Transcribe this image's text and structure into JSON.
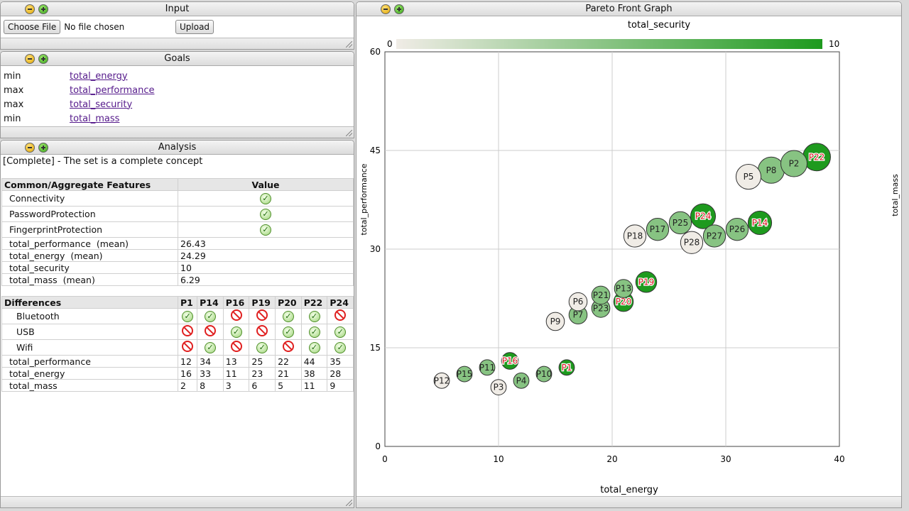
{
  "input": {
    "title": "Input",
    "choose_label": "Choose File",
    "file_status": "No file chosen",
    "upload_label": "Upload"
  },
  "goals": {
    "title": "Goals",
    "items": [
      {
        "dir": "min",
        "name": "total_energy"
      },
      {
        "dir": "max",
        "name": "total_performance"
      },
      {
        "dir": "max",
        "name": "total_security"
      },
      {
        "dir": "min",
        "name": "total_mass"
      }
    ]
  },
  "analysis": {
    "title": "Analysis",
    "status": "[Complete] - The set is a complete concept",
    "common_header": "Common/Aggregate Features",
    "value_header": "Value",
    "common_features": [
      {
        "name": "Connectivity",
        "value": "check"
      },
      {
        "name": "PasswordProtection",
        "value": "check"
      },
      {
        "name": "FingerprintProtection",
        "value": "check"
      }
    ],
    "aggregates": [
      {
        "name": "total_performance  (mean)",
        "value": "26.43"
      },
      {
        "name": "total_energy  (mean)",
        "value": "24.29"
      },
      {
        "name": "total_security",
        "value": "10"
      },
      {
        "name": "total_mass  (mean)",
        "value": "6.29"
      }
    ],
    "diff_header": "Differences",
    "products": [
      "P1",
      "P14",
      "P16",
      "P19",
      "P20",
      "P22",
      "P24"
    ],
    "diff_features": [
      {
        "name": "Bluetooth",
        "values": [
          "check",
          "check",
          "no",
          "no",
          "check",
          "check",
          "no"
        ]
      },
      {
        "name": "USB",
        "values": [
          "no",
          "no",
          "check",
          "no",
          "check",
          "check",
          "check"
        ]
      },
      {
        "name": "Wifi",
        "values": [
          "no",
          "check",
          "no",
          "check",
          "no",
          "check",
          "check"
        ]
      }
    ],
    "diff_metrics": [
      {
        "name": "total_performance",
        "values": [
          "12",
          "34",
          "13",
          "25",
          "22",
          "44",
          "35"
        ]
      },
      {
        "name": "total_energy",
        "values": [
          "16",
          "33",
          "11",
          "23",
          "21",
          "38",
          "28"
        ]
      },
      {
        "name": "total_mass",
        "values": [
          "2",
          "8",
          "3",
          "6",
          "5",
          "11",
          "9"
        ]
      }
    ]
  },
  "graph": {
    "title": "Pareto Front Graph"
  },
  "chart_data": {
    "type": "scatter",
    "title": "",
    "color_label": "total_security",
    "color_range": [
      0,
      10
    ],
    "size_label": "total_mass",
    "xlabel": "total_energy",
    "ylabel": "total_performance",
    "xlim": [
      0,
      40
    ],
    "ylim": [
      0,
      60
    ],
    "xticks": [
      0,
      10,
      20,
      30,
      40
    ],
    "yticks": [
      0,
      15,
      30,
      45,
      60
    ],
    "colors": {
      "low": "#f0ece6",
      "high": "#1e9a1e"
    },
    "points": [
      {
        "label": "P12",
        "x": 5,
        "y": 10,
        "size": 2,
        "security": 0,
        "selected": false
      },
      {
        "label": "P15",
        "x": 7,
        "y": 11,
        "size": 2,
        "security": 5,
        "selected": false
      },
      {
        "label": "P11",
        "x": 9,
        "y": 12,
        "size": 2,
        "security": 5,
        "selected": false
      },
      {
        "label": "P3",
        "x": 10,
        "y": 9,
        "size": 2,
        "security": 0,
        "selected": false
      },
      {
        "label": "P16",
        "x": 11,
        "y": 13,
        "size": 3,
        "security": 10,
        "selected": true
      },
      {
        "label": "P4",
        "x": 12,
        "y": 10,
        "size": 2,
        "security": 5,
        "selected": false
      },
      {
        "label": "P10",
        "x": 14,
        "y": 11,
        "size": 2,
        "security": 5,
        "selected": false
      },
      {
        "label": "P1",
        "x": 16,
        "y": 12,
        "size": 2,
        "security": 10,
        "selected": true
      },
      {
        "label": "P9",
        "x": 15,
        "y": 19,
        "size": 4,
        "security": 0,
        "selected": false
      },
      {
        "label": "P6",
        "x": 17,
        "y": 22,
        "size": 4,
        "security": 0,
        "selected": false
      },
      {
        "label": "P7",
        "x": 17,
        "y": 20,
        "size": 4,
        "security": 5,
        "selected": false
      },
      {
        "label": "P21",
        "x": 19,
        "y": 23,
        "size": 4,
        "security": 5,
        "selected": false
      },
      {
        "label": "P23",
        "x": 19,
        "y": 21,
        "size": 4,
        "security": 5,
        "selected": false
      },
      {
        "label": "P13",
        "x": 21,
        "y": 24,
        "size": 4,
        "security": 5,
        "selected": false
      },
      {
        "label": "P20",
        "x": 21,
        "y": 22,
        "size": 5,
        "security": 10,
        "selected": true
      },
      {
        "label": "P19",
        "x": 23,
        "y": 25,
        "size": 6,
        "security": 10,
        "selected": true
      },
      {
        "label": "P18",
        "x": 22,
        "y": 32,
        "size": 7,
        "security": 0,
        "selected": false
      },
      {
        "label": "P17",
        "x": 24,
        "y": 33,
        "size": 7,
        "security": 5,
        "selected": false
      },
      {
        "label": "P25",
        "x": 26,
        "y": 34,
        "size": 7,
        "security": 5,
        "selected": false
      },
      {
        "label": "P24",
        "x": 28,
        "y": 35,
        "size": 9,
        "security": 10,
        "selected": true
      },
      {
        "label": "P28",
        "x": 27,
        "y": 31,
        "size": 7,
        "security": 0,
        "selected": false
      },
      {
        "label": "P27",
        "x": 29,
        "y": 32,
        "size": 7,
        "security": 5,
        "selected": false
      },
      {
        "label": "P26",
        "x": 31,
        "y": 33,
        "size": 7,
        "security": 5,
        "selected": false
      },
      {
        "label": "P14",
        "x": 33,
        "y": 34,
        "size": 8,
        "security": 10,
        "selected": true
      },
      {
        "label": "P5",
        "x": 32,
        "y": 41,
        "size": 9,
        "security": 0,
        "selected": false
      },
      {
        "label": "P8",
        "x": 34,
        "y": 42,
        "size": 10,
        "security": 5,
        "selected": false
      },
      {
        "label": "P2",
        "x": 36,
        "y": 43,
        "size": 10,
        "security": 5,
        "selected": false
      },
      {
        "label": "P22",
        "x": 38,
        "y": 44,
        "size": 11,
        "security": 10,
        "selected": true
      }
    ]
  }
}
